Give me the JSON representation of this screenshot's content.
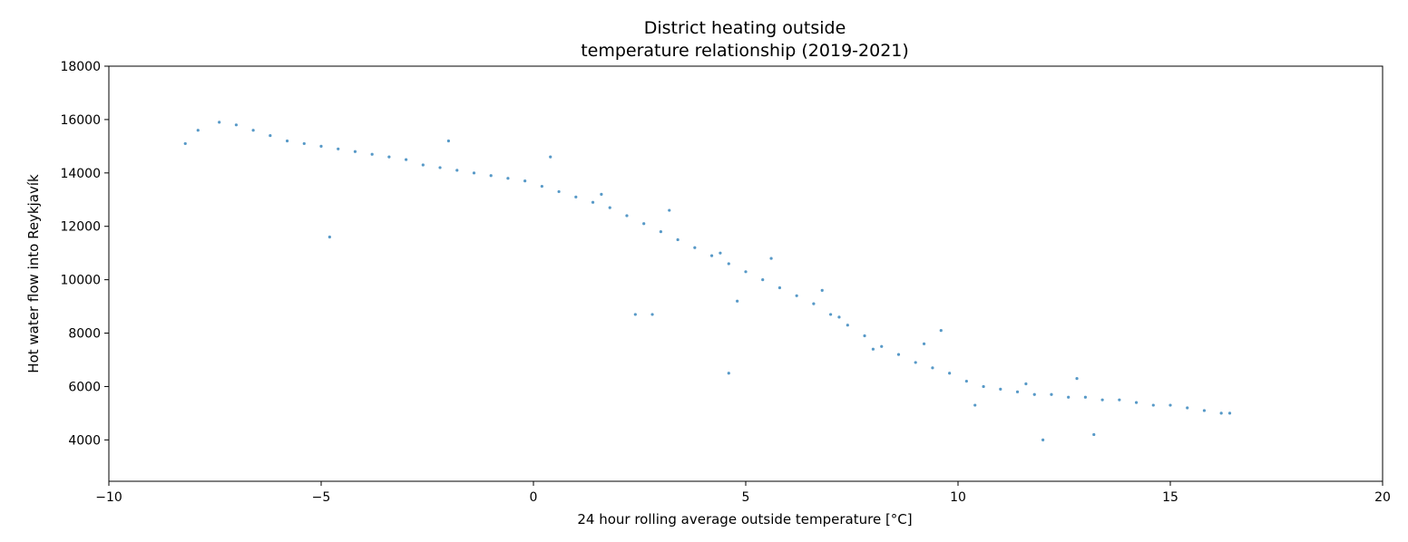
{
  "chart_data": {
    "type": "scatter",
    "title_lines": [
      "District heating outside",
      "temperature relationship (2019-2021)"
    ],
    "xlabel": "24 hour rolling average outside temperature [°C]",
    "ylabel": "Hot water flow into Reykjavík",
    "xlim": [
      -10,
      20
    ],
    "ylim": [
      2450,
      18000
    ],
    "x_ticks": [
      -10,
      -5,
      0,
      5,
      10,
      15,
      20
    ],
    "x_tick_labels": [
      "−10",
      "−5",
      "0",
      "5",
      "10",
      "15",
      "20"
    ],
    "y_ticks": [
      4000,
      6000,
      8000,
      10000,
      12000,
      14000,
      16000,
      18000
    ],
    "y_tick_labels": [
      "4000",
      "6000",
      "8000",
      "10000",
      "12000",
      "14000",
      "16000",
      "18000"
    ],
    "grid": false,
    "color": "#1f77b4",
    "series": [
      {
        "x": [
          -8.2,
          -7.9,
          -7.4,
          -7.0,
          -6.6,
          -6.2,
          -5.8,
          -5.4,
          -5.0,
          -4.6,
          -4.2,
          -3.8,
          -3.4,
          -3.0,
          -2.6,
          -2.2,
          -1.8,
          -1.4,
          -1.0,
          -0.6,
          -0.2,
          0.2,
          0.6,
          1.0,
          1.4,
          1.8,
          2.2,
          2.6,
          3.0,
          3.4,
          3.8,
          4.2,
          4.6,
          5.0,
          5.4,
          5.8,
          6.2,
          6.6,
          7.0,
          7.4,
          7.8,
          8.2,
          8.6,
          9.0,
          9.4,
          9.8,
          10.2,
          10.6,
          11.0,
          11.4,
          11.8,
          12.2,
          12.6,
          13.0,
          13.4,
          13.8,
          14.2,
          14.6,
          15.0,
          15.4,
          15.8,
          16.2,
          16.4,
          -2.0,
          0.4,
          1.6,
          3.2,
          4.4,
          5.6,
          6.8,
          8.0,
          9.2,
          10.4,
          11.6,
          12.8,
          -4.8,
          2.4,
          4.8,
          7.2,
          9.6,
          12.0,
          13.2,
          2.8,
          4.6
        ],
        "y": [
          15100,
          15600,
          15900,
          15800,
          15600,
          15400,
          15200,
          15100,
          15000,
          14900,
          14800,
          14700,
          14600,
          14500,
          14300,
          14200,
          14100,
          14000,
          13900,
          13800,
          13700,
          13500,
          13300,
          13100,
          12900,
          12700,
          12400,
          12100,
          11800,
          11500,
          11200,
          10900,
          10600,
          10300,
          10000,
          9700,
          9400,
          9100,
          8700,
          8300,
          7900,
          7500,
          7200,
          6900,
          6700,
          6500,
          6200,
          6000,
          5900,
          5800,
          5700,
          5700,
          5600,
          5600,
          5500,
          5500,
          5400,
          5300,
          5300,
          5200,
          5100,
          5000,
          5000,
          15200,
          14600,
          13200,
          12600,
          11000,
          10800,
          9600,
          7400,
          7600,
          5300,
          6100,
          6300,
          11600,
          8700,
          9200,
          8600,
          8100,
          4000,
          4200,
          8700,
          6500
        ]
      }
    ]
  }
}
